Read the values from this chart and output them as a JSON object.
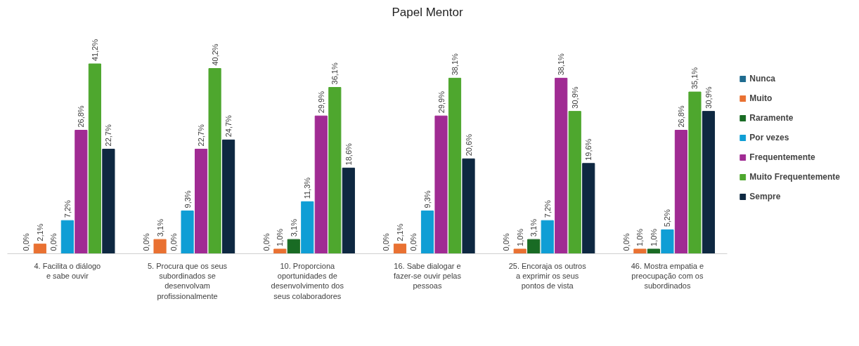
{
  "chart_data": {
    "type": "bar",
    "title": "Papel Mentor",
    "categories": [
      "4. Facilita o diálogo e sabe ouvir",
      "5. Procura que os seus subordinados se desenvolvam profissionalmente",
      "10. Proporciona oportunidades de desenvolvimento dos seus colaboradores",
      "16. Sabe dialogar e fazer-se ouvir pelas pessoas",
      "25. Encoraja os outros a exprimir os seus pontos de vista",
      "46. Mostra empatia e preocupação com os subordinados"
    ],
    "series": [
      {
        "name": "Nunca",
        "color": "#1f6b8f",
        "values": [
          0,
          0,
          0,
          0,
          0,
          0
        ],
        "value_labels": [
          "0,0%",
          "0,0%",
          "0,0%",
          "0,0%",
          "0,0%",
          "0,0%"
        ]
      },
      {
        "name": "Muito",
        "color": "#e97132",
        "values": [
          2.1,
          3.1,
          1.0,
          2.1,
          1.0,
          1.0
        ],
        "value_labels": [
          "2,1%",
          "3,1%",
          "1,0%",
          "2,1%",
          "1,0%",
          "1,0%"
        ]
      },
      {
        "name": "Raramente",
        "color": "#196b24",
        "values": [
          0,
          0,
          3.1,
          0,
          3.1,
          1.0
        ],
        "value_labels": [
          "0,0%",
          "0,0%",
          "3,1%",
          "0,0%",
          "3,1%",
          "1,0%"
        ]
      },
      {
        "name": "Por vezes",
        "color": "#0f9ed5",
        "values": [
          7.2,
          9.3,
          11.3,
          9.3,
          7.2,
          5.2
        ],
        "value_labels": [
          "7,2%",
          "9,3%",
          "11,3%",
          "9,3%",
          "7,2%",
          "5,2%"
        ]
      },
      {
        "name": "Frequentemente",
        "color": "#a02b93",
        "values": [
          26.8,
          22.7,
          29.9,
          29.9,
          38.1,
          26.8
        ],
        "value_labels": [
          "26,8%",
          "22,7%",
          "29,9%",
          "29,9%",
          "38,1%",
          "26,8%"
        ]
      },
      {
        "name": "Muito Frequentemente",
        "color": "#4ea72e",
        "values": [
          41.2,
          40.2,
          36.1,
          38.1,
          30.9,
          35.1
        ],
        "value_labels": [
          "41,2%",
          "40,2%",
          "36,1%",
          "38,1%",
          "30,9%",
          "35,1%"
        ]
      },
      {
        "name": "Sempre",
        "color": "#0e2841",
        "values": [
          22.7,
          24.7,
          18.6,
          20.6,
          19.6,
          30.9
        ],
        "value_labels": [
          "22,7%",
          "24,7%",
          "18,6%",
          "20,6%",
          "19,6%",
          "30,9%"
        ]
      }
    ],
    "legend": "right",
    "grid": false
  }
}
